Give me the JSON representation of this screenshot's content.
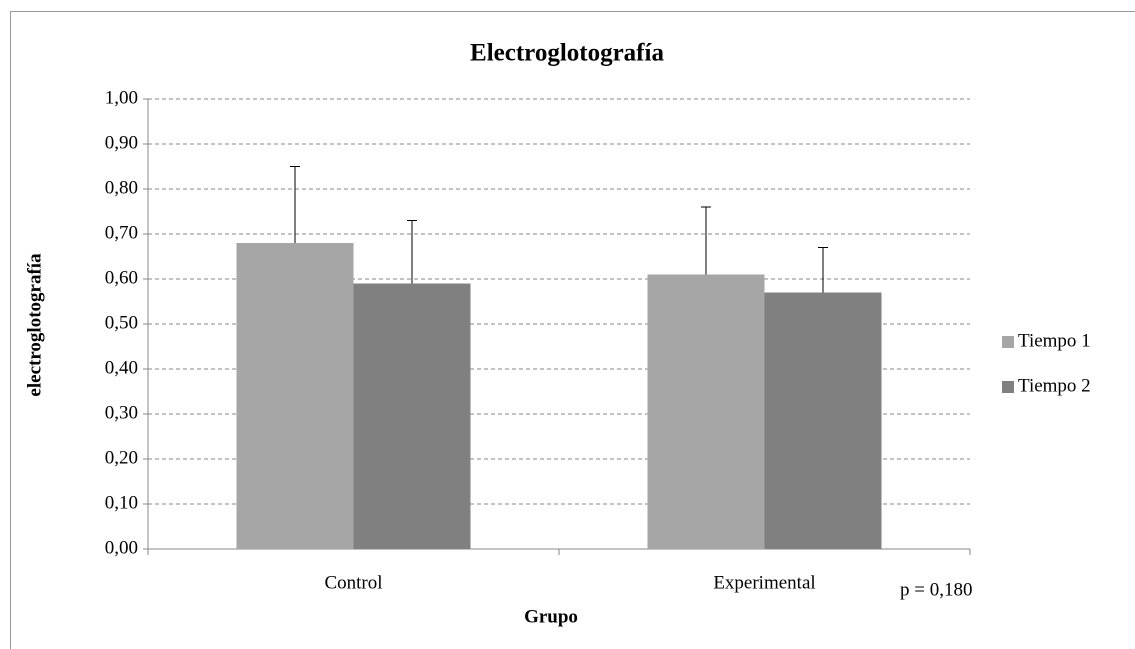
{
  "chart_data": {
    "type": "bar",
    "title": "Electroglotografía",
    "ylabel": "electroglotografía",
    "xlabel": "Grupo",
    "annotation": "p = 0,180",
    "categories": [
      "Control",
      "Experimental"
    ],
    "series": [
      {
        "name": "Tiempo 1",
        "color": "#a6a6a6",
        "values": [
          0.68,
          0.61
        ],
        "errors": [
          0.17,
          0.15
        ]
      },
      {
        "name": "Tiempo 2",
        "color": "#808080",
        "values": [
          0.59,
          0.57
        ],
        "errors": [
          0.14,
          0.1
        ]
      }
    ],
    "ylim": [
      0,
      1
    ],
    "yticks": [
      {
        "value": 0,
        "label": "0,00"
      },
      {
        "value": 0.1,
        "label": "0,10"
      },
      {
        "value": 0.2,
        "label": "0,20"
      },
      {
        "value": 0.3,
        "label": "0,30"
      },
      {
        "value": 0.4,
        "label": "0,40"
      },
      {
        "value": 0.5,
        "label": "0,50"
      },
      {
        "value": 0.6,
        "label": "0,60"
      },
      {
        "value": 0.7,
        "label": "0,70"
      },
      {
        "value": 0.8,
        "label": "0,80"
      },
      {
        "value": 0.9,
        "label": "0,90"
      },
      {
        "value": 1,
        "label": "1,00"
      }
    ],
    "grid": true,
    "legend": "right"
  }
}
